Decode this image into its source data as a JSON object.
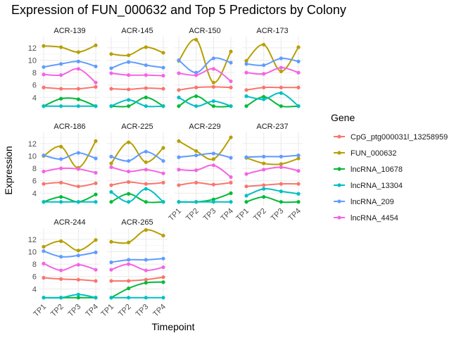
{
  "chart_data": {
    "type": "line",
    "title": "Expression of FUN_000632 and Top 5 Predictors by Colony",
    "xlabel": "Timepoint",
    "ylabel": "Expression",
    "categories": [
      "TP1",
      "TP2",
      "TP3",
      "TP4"
    ],
    "y_ticks": [
      4,
      6,
      8,
      10,
      12
    ],
    "ylim": [
      2.0,
      13.8
    ],
    "grid": true,
    "legend": {
      "title": "Gene",
      "position": "right"
    },
    "series_styles": [
      {
        "name": "CpG_ptg000031l_13258959",
        "color": "#F8766D"
      },
      {
        "name": "FUN_000632",
        "color": "#B79F00"
      },
      {
        "name": "lncRNA_10678",
        "color": "#00BA38"
      },
      {
        "name": "lncRNA_13304",
        "color": "#00BFC4"
      },
      {
        "name": "lncRNA_209",
        "color": "#619CFF"
      },
      {
        "name": "lncRNA_4454",
        "color": "#F564E3"
      }
    ],
    "panels": [
      {
        "colony": "ACR-139",
        "series": [
          {
            "name": "CpG_ptg000031l_13258959",
            "values": [
              5.6,
              5.4,
              5.4,
              5.7
            ]
          },
          {
            "name": "FUN_000632",
            "values": [
              12.3,
              12.1,
              11.3,
              12.4
            ]
          },
          {
            "name": "lncRNA_10678",
            "values": [
              2.6,
              3.8,
              3.7,
              2.6
            ]
          },
          {
            "name": "lncRNA_13304",
            "values": [
              2.6,
              2.6,
              2.6,
              2.6
            ]
          },
          {
            "name": "lncRNA_209",
            "values": [
              8.9,
              9.4,
              9.8,
              9.0
            ]
          },
          {
            "name": "lncRNA_4454",
            "values": [
              7.7,
              7.6,
              8.6,
              6.4
            ]
          }
        ]
      },
      {
        "colony": "ACR-145",
        "series": [
          {
            "name": "CpG_ptg000031l_13258959",
            "values": [
              5.4,
              5.3,
              5.5,
              5.4
            ]
          },
          {
            "name": "FUN_000632",
            "values": [
              11.0,
              10.8,
              12.1,
              11.2
            ]
          },
          {
            "name": "lncRNA_10678",
            "values": [
              2.6,
              2.6,
              4.0,
              2.6
            ]
          },
          {
            "name": "lncRNA_13304",
            "values": [
              2.6,
              3.6,
              2.6,
              2.6
            ]
          },
          {
            "name": "lncRNA_209",
            "values": [
              8.7,
              9.7,
              9.2,
              8.8
            ]
          },
          {
            "name": "lncRNA_4454",
            "values": [
              7.9,
              7.6,
              7.6,
              7.5
            ]
          }
        ]
      },
      {
        "colony": "ACR-150",
        "series": [
          {
            "name": "CpG_ptg000031l_13258959",
            "values": [
              5.2,
              5.6,
              5.7,
              5.6
            ]
          },
          {
            "name": "FUN_000632",
            "values": [
              9.9,
              13.3,
              6.4,
              11.4
            ]
          },
          {
            "name": "lncRNA_10678",
            "values": [
              2.6,
              4.2,
              2.6,
              2.6
            ]
          },
          {
            "name": "lncRNA_13304",
            "values": [
              4.0,
              2.6,
              3.4,
              2.6
            ]
          },
          {
            "name": "lncRNA_209",
            "values": [
              10.0,
              8.0,
              10.3,
              9.6
            ]
          },
          {
            "name": "lncRNA_4454",
            "values": [
              7.9,
              7.6,
              8.6,
              6.6
            ]
          }
        ]
      },
      {
        "colony": "ACR-173",
        "series": [
          {
            "name": "CpG_ptg000031l_13258959",
            "values": [
              5.2,
              5.6,
              5.6,
              5.6
            ]
          },
          {
            "name": "FUN_000632",
            "values": [
              9.9,
              12.5,
              8.2,
              12.1
            ]
          },
          {
            "name": "lncRNA_10678",
            "values": [
              2.6,
              4.1,
              2.6,
              2.6
            ]
          },
          {
            "name": "lncRNA_13304",
            "values": [
              4.2,
              3.7,
              4.7,
              2.6
            ]
          },
          {
            "name": "lncRNA_209",
            "values": [
              9.4,
              9.2,
              10.3,
              9.8
            ]
          },
          {
            "name": "lncRNA_4454",
            "values": [
              8.0,
              7.8,
              8.8,
              8.0
            ]
          }
        ]
      },
      {
        "colony": "ACR-186",
        "series": [
          {
            "name": "CpG_ptg000031l_13258959",
            "values": [
              5.5,
              5.7,
              5.1,
              5.6
            ]
          },
          {
            "name": "FUN_000632",
            "values": [
              10.0,
              11.5,
              8.1,
              12.4
            ]
          },
          {
            "name": "lncRNA_10678",
            "values": [
              2.6,
              3.4,
              2.6,
              3.8
            ]
          },
          {
            "name": "lncRNA_13304",
            "values": [
              2.6,
              2.6,
              2.6,
              2.6
            ]
          },
          {
            "name": "lncRNA_209",
            "values": [
              10.1,
              9.5,
              10.5,
              9.6
            ]
          },
          {
            "name": "lncRNA_4454",
            "values": [
              7.5,
              8.0,
              7.9,
              7.3
            ]
          }
        ]
      },
      {
        "colony": "ACR-225",
        "series": [
          {
            "name": "CpG_ptg000031l_13258959",
            "values": [
              5.3,
              5.8,
              5.5,
              5.7
            ]
          },
          {
            "name": "FUN_000632",
            "values": [
              8.8,
              12.2,
              9.0,
              11.3
            ]
          },
          {
            "name": "lncRNA_10678",
            "values": [
              2.6,
              3.9,
              2.6,
              2.6
            ]
          },
          {
            "name": "lncRNA_13304",
            "values": [
              4.2,
              2.6,
              4.7,
              2.6
            ]
          },
          {
            "name": "lncRNA_209",
            "values": [
              9.9,
              9.2,
              10.7,
              9.2
            ]
          },
          {
            "name": "lncRNA_4454",
            "values": [
              8.2,
              7.5,
              7.8,
              7.2
            ]
          }
        ]
      },
      {
        "colony": "ACR-229",
        "series": [
          {
            "name": "CpG_ptg000031l_13258959",
            "values": [
              5.3,
              5.7,
              5.4,
              5.7
            ]
          },
          {
            "name": "FUN_000632",
            "values": [
              12.4,
              10.8,
              9.5,
              13.0
            ]
          },
          {
            "name": "lncRNA_10678",
            "values": [
              2.6,
              2.6,
              3.0,
              4.0
            ]
          },
          {
            "name": "lncRNA_13304",
            "values": [
              2.6,
              2.6,
              2.6,
              2.6
            ]
          },
          {
            "name": "lncRNA_209",
            "values": [
              9.8,
              10.1,
              10.4,
              9.7
            ]
          },
          {
            "name": "lncRNA_4454",
            "values": [
              7.8,
              7.7,
              8.5,
              6.6
            ]
          }
        ]
      },
      {
        "colony": "ACR-237",
        "series": [
          {
            "name": "CpG_ptg000031l_13258959",
            "values": [
              5.1,
              5.3,
              5.5,
              5.5
            ]
          },
          {
            "name": "FUN_000632",
            "values": [
              9.7,
              8.8,
              8.7,
              9.6
            ]
          },
          {
            "name": "lncRNA_10678",
            "values": [
              2.6,
              3.4,
              2.6,
              2.6
            ]
          },
          {
            "name": "lncRNA_13304",
            "values": [
              3.6,
              4.7,
              4.3,
              3.9
            ]
          },
          {
            "name": "lncRNA_209",
            "values": [
              9.8,
              9.9,
              9.9,
              10.1
            ]
          },
          {
            "name": "lncRNA_4454",
            "values": [
              7.1,
              7.8,
              8.2,
              7.6
            ]
          }
        ]
      },
      {
        "colony": "ACR-244",
        "series": [
          {
            "name": "CpG_ptg000031l_13258959",
            "values": [
              5.8,
              5.6,
              5.5,
              5.3
            ]
          },
          {
            "name": "FUN_000632",
            "values": [
              10.8,
              11.7,
              10.2,
              11.9
            ]
          },
          {
            "name": "lncRNA_10678",
            "values": [
              2.6,
              2.6,
              2.6,
              2.6
            ]
          },
          {
            "name": "lncRNA_13304",
            "values": [
              2.6,
              2.6,
              3.1,
              2.6
            ]
          },
          {
            "name": "lncRNA_209",
            "values": [
              10.1,
              9.2,
              9.4,
              9.9
            ]
          },
          {
            "name": "lncRNA_4454",
            "values": [
              8.1,
              7.0,
              7.9,
              7.1
            ]
          }
        ]
      },
      {
        "colony": "ACR-265",
        "series": [
          {
            "name": "CpG_ptg000031l_13258959",
            "values": [
              5.3,
              5.3,
              5.5,
              5.9
            ]
          },
          {
            "name": "FUN_000632",
            "values": [
              11.6,
              11.5,
              13.5,
              12.6
            ]
          },
          {
            "name": "lncRNA_10678",
            "values": [
              2.6,
              4.1,
              5.0,
              5.1
            ]
          },
          {
            "name": "lncRNA_13304",
            "values": [
              2.6,
              2.6,
              2.6,
              2.6
            ]
          },
          {
            "name": "lncRNA_209",
            "values": [
              8.3,
              8.7,
              8.7,
              8.9
            ]
          },
          {
            "name": "lncRNA_4454",
            "values": [
              7.1,
              8.0,
              7.0,
              7.5
            ]
          }
        ]
      }
    ]
  }
}
